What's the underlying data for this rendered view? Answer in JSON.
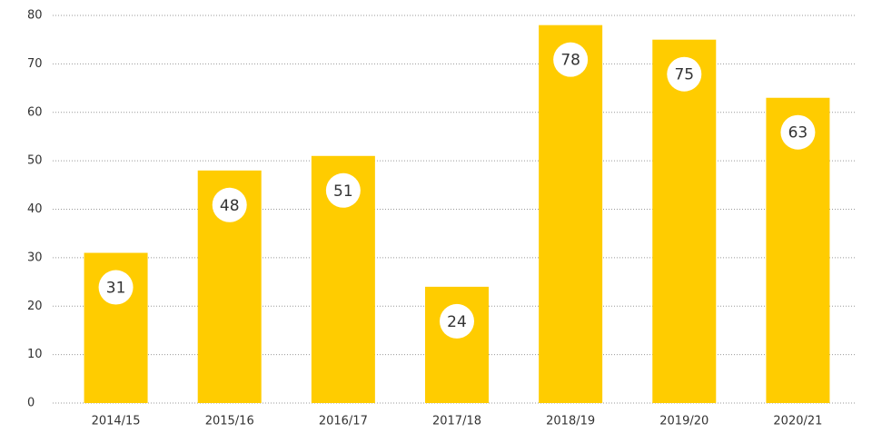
{
  "chart_data": {
    "type": "bar",
    "categories": [
      "2014/15",
      "2015/16",
      "2016/17",
      "2017/18",
      "2018/19",
      "2019/20",
      "2020/21"
    ],
    "values": [
      31,
      48,
      51,
      24,
      78,
      75,
      63
    ],
    "color": "#ffcc00",
    "ylim": [
      0,
      80
    ],
    "yticks": [
      0,
      10,
      20,
      30,
      40,
      50,
      60,
      70,
      80
    ],
    "grid": true
  }
}
